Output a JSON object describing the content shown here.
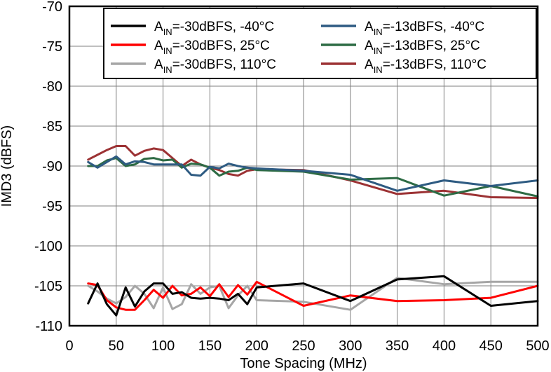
{
  "chart_data": {
    "type": "line",
    "title": "",
    "xlabel": "Tone Spacing (MHz)",
    "ylabel": "IMD3 (dBFS)",
    "xlim": [
      0,
      500
    ],
    "ylim": [
      -110,
      -70
    ],
    "xticks": [
      "0",
      "50",
      "100",
      "150",
      "200",
      "250",
      "300",
      "350",
      "400",
      "450",
      "500"
    ],
    "yticks": [
      "-70",
      "-75",
      "-80",
      "-85",
      "-90",
      "-95",
      "-100",
      "-105",
      "-110"
    ],
    "grid": true,
    "legend_position": "top",
    "series": [
      {
        "name": "AIN=-30dBFS, -40°C",
        "legend": {
          "pre": "A",
          "sub": "IN",
          "post": "=-30dBFS, -40°C"
        },
        "color": "#000000",
        "x": [
          20,
          30,
          40,
          50,
          60,
          70,
          80,
          90,
          100,
          110,
          120,
          130,
          140,
          150,
          160,
          170,
          180,
          190,
          200,
          250,
          300,
          350,
          400,
          450,
          500
        ],
        "y": [
          -107.2,
          -104.7,
          -107.3,
          -108.7,
          -105.2,
          -107.6,
          -105.7,
          -104.7,
          -104.7,
          -106.0,
          -105.8,
          -106.5,
          -106.6,
          -106.5,
          -106.6,
          -106.8,
          -106.0,
          -107.3,
          -105.2,
          -104.7,
          -106.9,
          -104.2,
          -103.8,
          -107.5,
          -106.9
        ]
      },
      {
        "name": "AIN=-30dBFS, 25°C",
        "legend": {
          "pre": "A",
          "sub": "IN",
          "post": "=-30dBFS, 25°C"
        },
        "color": "#ff0000",
        "x": [
          20,
          30,
          40,
          50,
          60,
          70,
          80,
          90,
          100,
          110,
          120,
          130,
          140,
          150,
          160,
          170,
          180,
          190,
          200,
          250,
          300,
          350,
          400,
          450,
          500
        ],
        "y": [
          -104.7,
          -104.9,
          -106.8,
          -107.7,
          -108.0,
          -108.0,
          -106.8,
          -105.5,
          -106.5,
          -105.0,
          -106.2,
          -106.0,
          -105.2,
          -106.3,
          -104.8,
          -106.4,
          -104.9,
          -106.1,
          -104.5,
          -107.5,
          -106.2,
          -106.9,
          -106.8,
          -106.5,
          -105.0
        ]
      },
      {
        "name": "AIN=-30dBFS, 110°C",
        "legend": {
          "pre": "A",
          "sub": "IN",
          "post": "=-30dBFS, 110°C"
        },
        "color": "#a6a6a6",
        "x": [
          20,
          30,
          40,
          50,
          60,
          70,
          80,
          90,
          100,
          110,
          120,
          130,
          140,
          150,
          160,
          170,
          180,
          190,
          200,
          250,
          300,
          350,
          400,
          450,
          500
        ],
        "y": [
          -105.0,
          -105.7,
          -106.6,
          -107.2,
          -106.4,
          -105.0,
          -106.0,
          -107.8,
          -105.2,
          -107.9,
          -107.3,
          -104.8,
          -106.0,
          -105.2,
          -105.0,
          -107.8,
          -106.2,
          -105.0,
          -106.8,
          -107.0,
          -108.0,
          -104.0,
          -104.8,
          -104.5,
          -104.5
        ]
      },
      {
        "name": "AIN=-13dBFS, -40°C",
        "legend": {
          "pre": "A",
          "sub": "IN",
          "post": "=-13dBFS, -40°C"
        },
        "color": "#2e5b82",
        "x": [
          20,
          30,
          40,
          50,
          60,
          70,
          80,
          90,
          100,
          110,
          120,
          130,
          140,
          150,
          160,
          170,
          180,
          190,
          200,
          250,
          300,
          350,
          400,
          450,
          500
        ],
        "y": [
          -89.5,
          -90.2,
          -89.5,
          -88.8,
          -89.8,
          -89.4,
          -89.5,
          -89.8,
          -89.8,
          -89.8,
          -89.8,
          -91.1,
          -91.2,
          -90.1,
          -90.3,
          -89.7,
          -90.0,
          -90.2,
          -90.3,
          -90.6,
          -91.1,
          -93.1,
          -91.8,
          -92.5,
          -91.8
        ]
      },
      {
        "name": "AIN=-13dBFS, 25°C",
        "legend": {
          "pre": "A",
          "sub": "IN",
          "post": "=-13dBFS, 25°C"
        },
        "color": "#2d6b44",
        "x": [
          20,
          30,
          40,
          50,
          60,
          70,
          80,
          90,
          100,
          110,
          120,
          130,
          140,
          150,
          160,
          170,
          180,
          190,
          200,
          250,
          300,
          350,
          400,
          450,
          500
        ],
        "y": [
          -90.0,
          -90.0,
          -89.3,
          -89.0,
          -90.0,
          -89.8,
          -89.1,
          -89.0,
          -89.3,
          -89.2,
          -90.2,
          -89.7,
          -89.8,
          -90.2,
          -91.2,
          -90.7,
          -90.6,
          -90.2,
          -90.5,
          -90.7,
          -91.7,
          -91.5,
          -93.7,
          -92.5,
          -93.8
        ]
      },
      {
        "name": "AIN=-13dBFS, 110°C",
        "legend": {
          "pre": "A",
          "sub": "IN",
          "post": "=-13dBFS, 110°C"
        },
        "color": "#9c3234",
        "x": [
          20,
          30,
          40,
          50,
          60,
          70,
          80,
          90,
          100,
          110,
          120,
          130,
          140,
          150,
          160,
          170,
          180,
          190,
          200,
          250,
          300,
          350,
          400,
          450,
          500
        ],
        "y": [
          -89.2,
          -88.6,
          -88.0,
          -87.5,
          -87.5,
          -88.7,
          -88.1,
          -87.8,
          -88.0,
          -89.0,
          -90.0,
          -89.2,
          -89.8,
          -90.2,
          -90.5,
          -91.0,
          -91.2,
          -90.6,
          -90.4,
          -90.5,
          -91.8,
          -93.5,
          -93.1,
          -93.9,
          -94.0
        ]
      }
    ]
  }
}
